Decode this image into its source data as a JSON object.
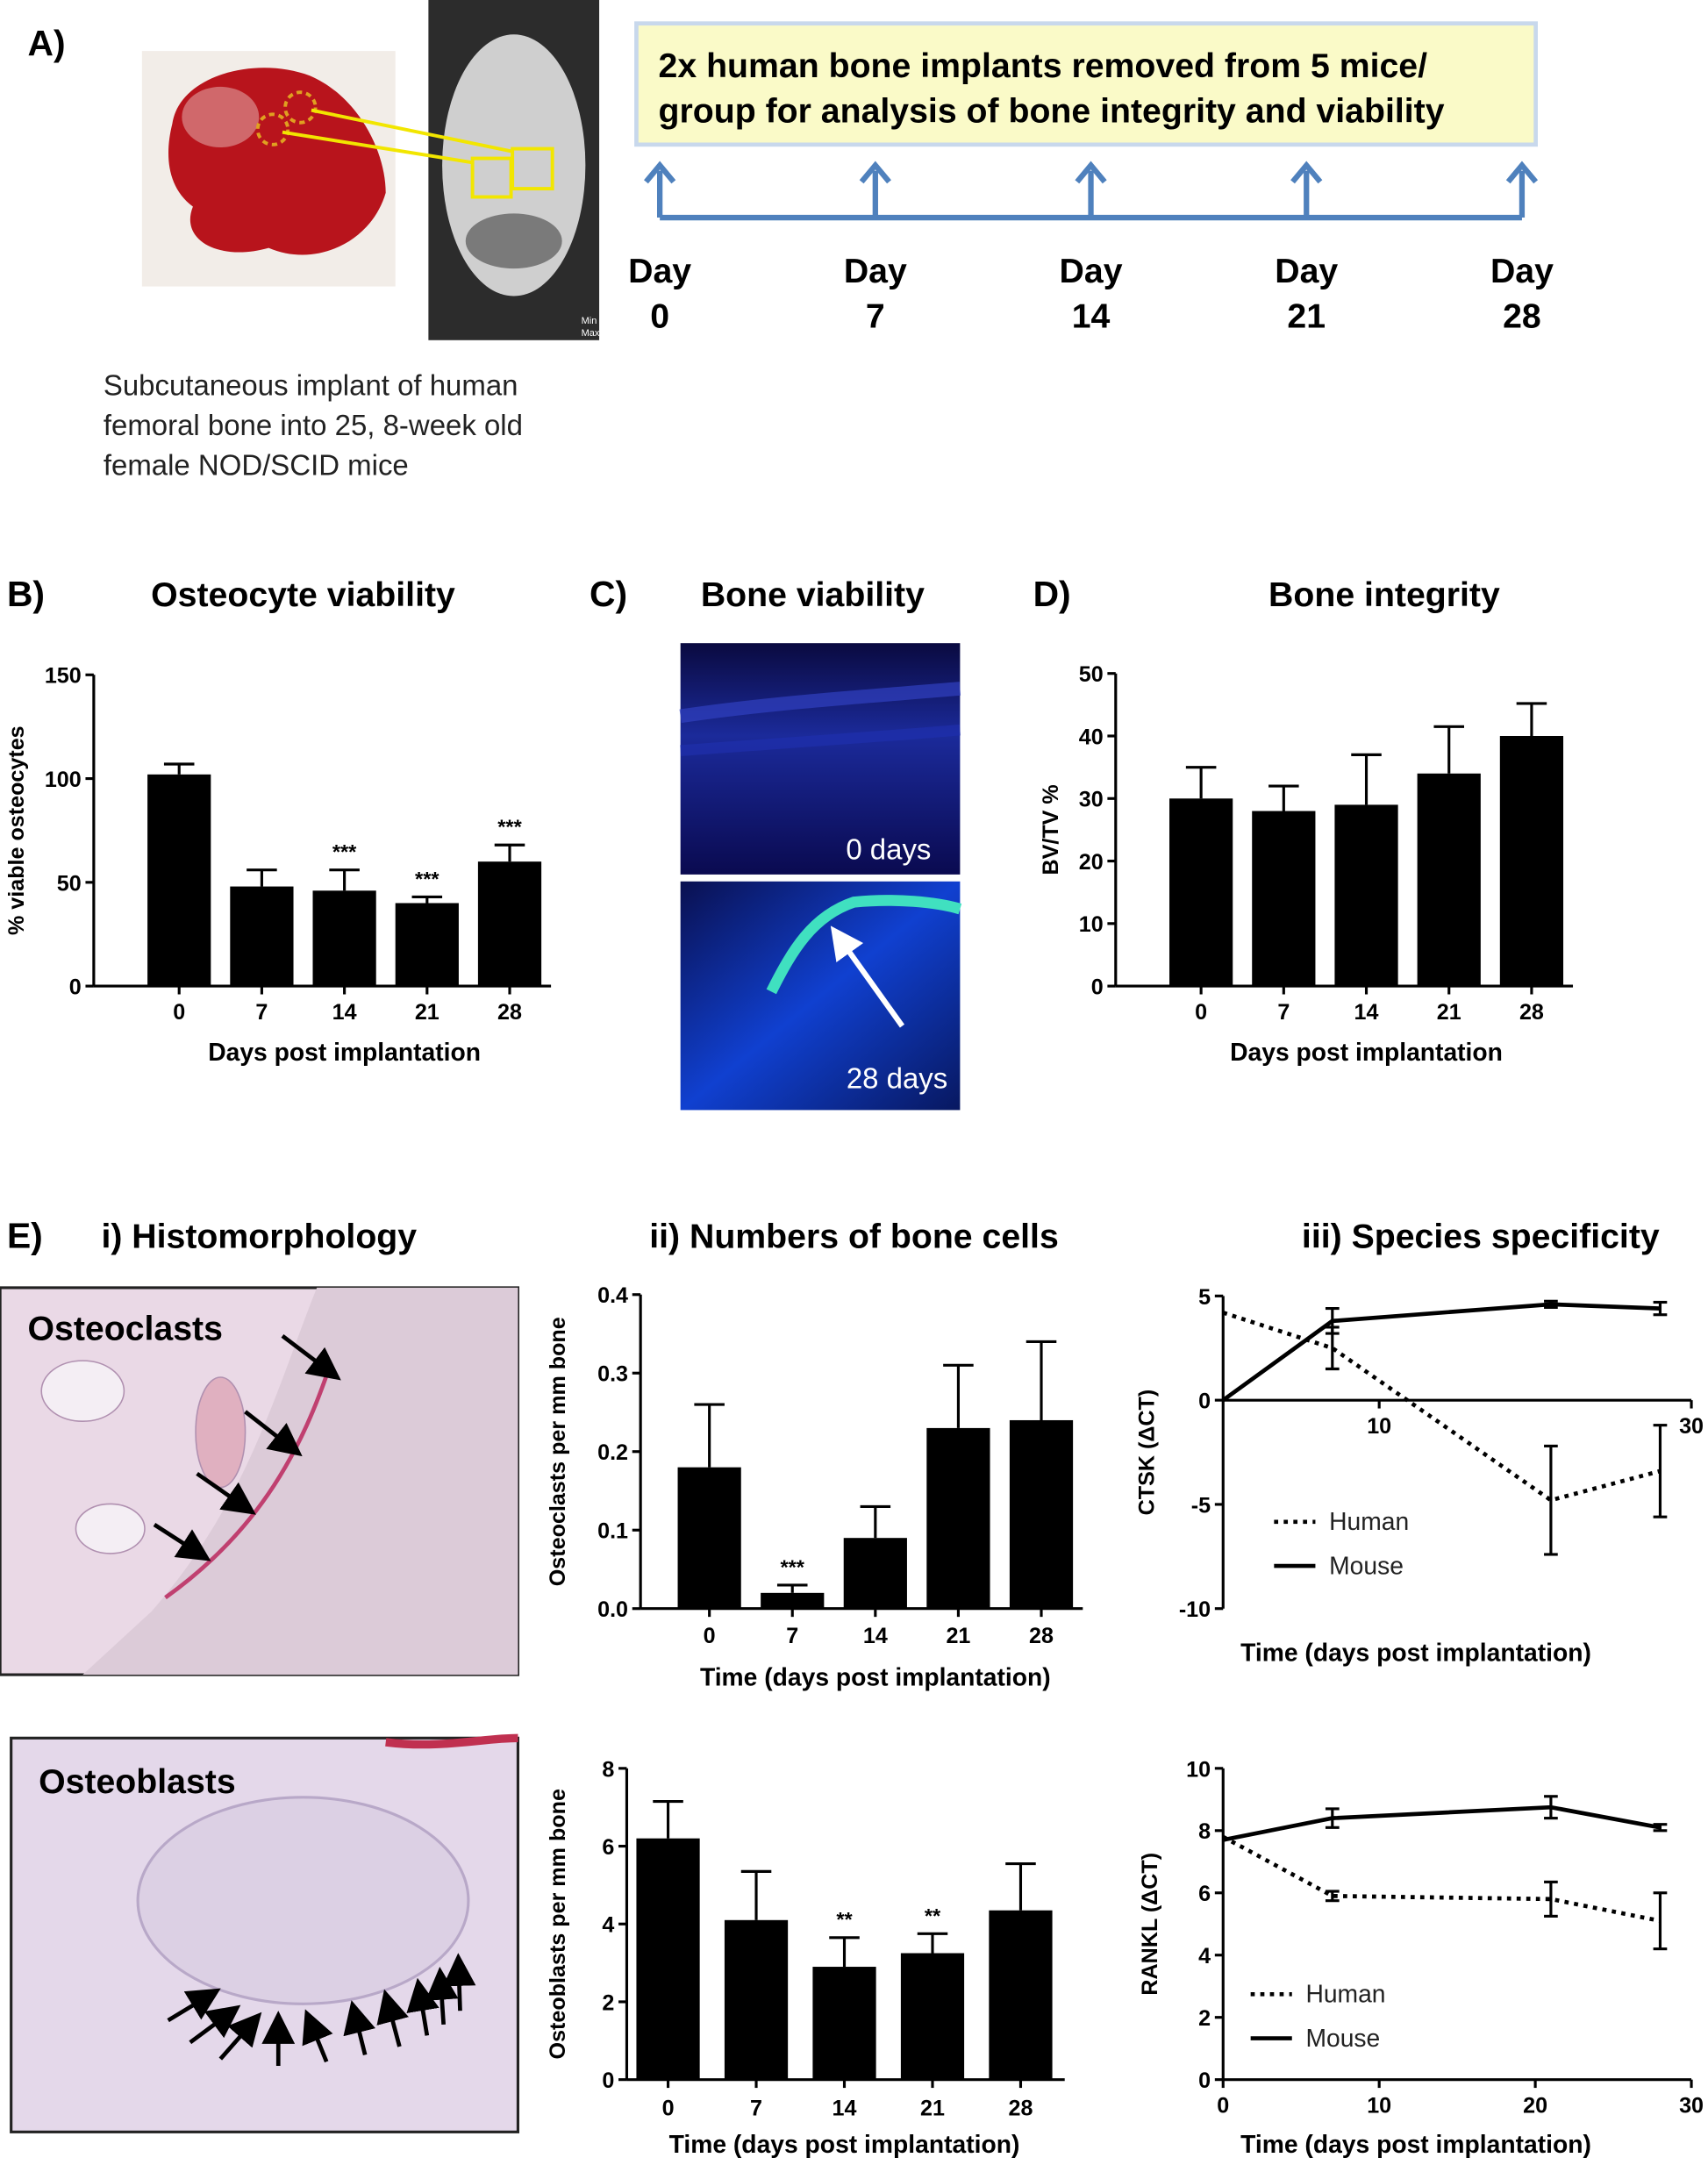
{
  "panel_a": {
    "label": "A)",
    "caption": [
      "Subcutaneous implant of human",
      "femoral bone into 25, 8-week old",
      "female NOD/SCID mice"
    ],
    "timeline_box": [
      "2x human bone implants removed from 5 mice/",
      "group for analysis of bone integrity and viability"
    ],
    "day_word": "Day",
    "days": [
      0,
      7,
      14,
      21,
      28
    ],
    "image_min": "Min",
    "image_max": "Max"
  },
  "panel_c": {
    "label": "C)",
    "title": "Bone viability",
    "top_label": "0 days",
    "bottom_label": "28 days"
  },
  "panel_e": {
    "label": "E)",
    "histology_title": "i) Histomorphology",
    "top_label": "Osteoclasts",
    "bottom_label": "Osteoblasts"
  },
  "chart_data": [
    {
      "type": "bar",
      "panel_label": "B)",
      "title": "Osteocyte viability",
      "y_label": "% viable osteocytes",
      "x_label": "Days post implantation",
      "categories": [
        "0",
        "7",
        "14",
        "21",
        "28"
      ],
      "values": [
        102,
        48,
        46,
        40,
        60
      ],
      "errors": [
        5,
        8,
        10,
        3,
        8
      ],
      "annotations": [
        null,
        null,
        "***",
        "***",
        "***"
      ],
      "color": "#000000",
      "ylim": [
        0,
        150
      ],
      "yticks": [
        0,
        50,
        100,
        150
      ]
    },
    {
      "type": "bar",
      "panel_label": "D)",
      "title": "Bone integrity",
      "y_label": "BV/TV %",
      "x_label": "Days post implantation",
      "categories": [
        "0",
        "7",
        "14",
        "21",
        "28"
      ],
      "values": [
        30,
        28,
        29,
        34,
        40
      ],
      "errors": [
        5,
        4,
        8,
        7.5,
        5.2
      ],
      "color": "#000000",
      "ylim": [
        0,
        50
      ],
      "yticks": [
        0,
        10,
        20,
        30,
        40,
        50
      ]
    },
    {
      "type": "bar",
      "title": "ii) Numbers of bone cells",
      "y_label": "Osteoclasts per mm bone",
      "x_label": "Time (days post implantation)",
      "categories": [
        "0",
        "7",
        "14",
        "21",
        "28"
      ],
      "values": [
        0.18,
        0.02,
        0.09,
        0.23,
        0.24
      ],
      "errors": [
        0.08,
        0.01,
        0.04,
        0.08,
        0.1
      ],
      "annotations": [
        null,
        "***",
        null,
        null,
        null
      ],
      "color": "#000000",
      "ylim": [
        0,
        0.4
      ],
      "yticks": [
        {
          "value": 0,
          "label": "0.0"
        },
        0.1,
        0.2,
        0.3,
        0.4
      ]
    },
    {
      "type": "bar",
      "y_label": "Osteoblasts per mm bone",
      "x_label": "Time (days post implantation)",
      "categories": [
        "0",
        "7",
        "14",
        "21",
        "28"
      ],
      "values": [
        6.2,
        4.1,
        2.9,
        3.25,
        4.35
      ],
      "errors": [
        0.95,
        1.25,
        0.75,
        0.5,
        1.2
      ],
      "annotations": [
        null,
        null,
        "**",
        "**",
        null
      ],
      "color": "#000000",
      "ylim": [
        0,
        8
      ],
      "yticks": [
        0,
        2,
        4,
        6,
        8
      ]
    },
    {
      "type": "line",
      "title": "iii) Species specificity",
      "y_label": "CTSK (ΔCT)",
      "x_label": "Time (days post implantation)",
      "x": [
        0,
        7,
        21,
        28
      ],
      "legend": "lower left",
      "series": [
        {
          "name": "Human",
          "color": "#000000",
          "line_style": "dotted",
          "values": [
            4.2,
            2.5,
            -4.8,
            -3.4
          ],
          "errors": [
            null,
            1,
            2.6,
            2.2
          ]
        },
        {
          "name": "Mouse",
          "color": "#000000",
          "line_style": "solid",
          "values": [
            0,
            3.8,
            4.6,
            4.4
          ],
          "errors": [
            null,
            0.6,
            0.15,
            0.3
          ]
        }
      ],
      "xlim": [
        0,
        30
      ],
      "xticks": [
        10,
        30
      ],
      "ylim": [
        -10,
        5
      ],
      "yticks": [
        -10,
        -5,
        0,
        5
      ]
    },
    {
      "type": "line",
      "y_label": "RANKL (ΔCT)",
      "x_label": "Time (days post implantation)",
      "x": [
        0,
        7,
        21,
        28
      ],
      "legend": "lower left",
      "series": [
        {
          "name": "Human",
          "color": "#000000",
          "line_style": "dotted",
          "values": [
            7.8,
            5.9,
            5.8,
            5.1
          ],
          "errors": [
            null,
            0.15,
            0.55,
            0.9
          ]
        },
        {
          "name": "Mouse",
          "color": "#000000",
          "line_style": "solid",
          "values": [
            7.7,
            8.4,
            8.75,
            8.1
          ],
          "errors": [
            null,
            0.3,
            0.35,
            0.1
          ]
        }
      ],
      "xlim": [
        0,
        30
      ],
      "xticks": [
        0,
        10,
        20,
        30
      ],
      "ylim": [
        0,
        10
      ],
      "yticks": [
        0,
        2,
        4,
        6,
        8,
        10
      ]
    }
  ]
}
